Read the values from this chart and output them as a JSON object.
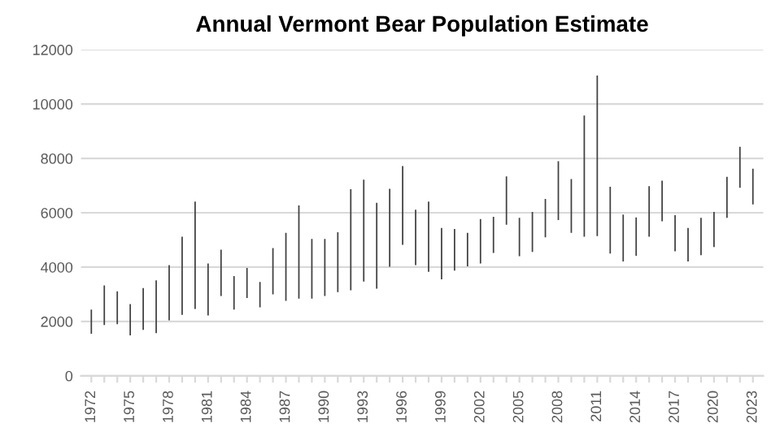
{
  "chart_data": {
    "type": "bar",
    "title": "Annual Vermont Bear Population Estimate",
    "categories": [
      "1972",
      null,
      null,
      "1975",
      null,
      null,
      "1978",
      null,
      null,
      "1981",
      null,
      null,
      "1984",
      null,
      null,
      "1987",
      null,
      null,
      "1990",
      null,
      null,
      "1993",
      null,
      null,
      "1996",
      null,
      null,
      "1999",
      null,
      null,
      "2002",
      null,
      null,
      "2005",
      null,
      null,
      "2008",
      null,
      null,
      "2011",
      null,
      null,
      "2014",
      null,
      null,
      "2017",
      null,
      null,
      "2020",
      null,
      null,
      "2023"
    ],
    "base": [
      1550,
      1870,
      1900,
      1490,
      1690,
      1570,
      2040,
      2240,
      2460,
      2220,
      2940,
      2440,
      2860,
      2520,
      3000,
      2760,
      2840,
      2840,
      2940,
      3080,
      3150,
      3470,
      3210,
      4010,
      4820,
      4070,
      3830,
      3550,
      3870,
      4030,
      4130,
      4520,
      5560,
      4400,
      4560,
      5100,
      5730,
      5260,
      5120,
      5140,
      4500,
      4210,
      4420,
      5120,
      5690,
      4580,
      4210,
      4440,
      4740,
      5810,
      6920,
      6310
    ],
    "values": [
      890,
      1460,
      1210,
      1150,
      1540,
      1940,
      2030,
      2880,
      3950,
      1910,
      1700,
      1230,
      1110,
      930,
      1700,
      2500,
      3430,
      2200,
      2100,
      2200,
      3720,
      3750,
      3160,
      2870,
      2900,
      2040,
      2580,
      1890,
      1530,
      1230,
      1640,
      1330,
      1780,
      1410,
      1470,
      1410,
      2170,
      1980,
      4460,
      5910,
      2460,
      1720,
      1410,
      1860,
      1490,
      1330,
      1230,
      1370,
      1290,
      1510,
      1510,
      1310
    ],
    "color": "#404040",
    "ylim": [
      0,
      12000
    ],
    "yticks": [
      0,
      2000,
      4000,
      6000,
      8000,
      10000,
      12000
    ],
    "grid": "y"
  }
}
